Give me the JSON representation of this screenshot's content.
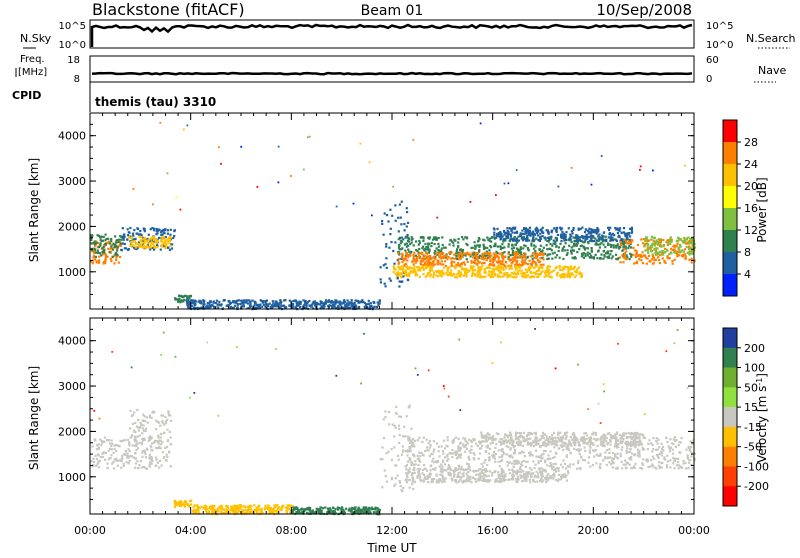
{
  "header": {
    "station": "Blackstone (fitACF)",
    "beam": "Beam 01",
    "date": "10/Sep/2008"
  },
  "top_panels": {
    "nsky_label": "N.Sky",
    "nsky_ticks": [
      "10^5",
      "10^0"
    ],
    "nsearch_label": "N.Search",
    "nsearch_ticks": [
      "10^5",
      "10^0"
    ],
    "freq_label_1": "Freq.",
    "freq_label_2": "[MHz]",
    "freq_ticks": [
      "18",
      "8"
    ],
    "nave_label": "Nave",
    "nave_ticks": [
      "60",
      "0"
    ],
    "cpid_label": "CPID",
    "cpid_text": "themis (tau) 3310"
  },
  "chart_data": [
    {
      "type": "heatmap",
      "name": "power",
      "ylabel": "Slant Range [km]",
      "xlabel": "",
      "ylim": [
        180,
        4500
      ],
      "xlim_hours": [
        0,
        24
      ],
      "yticks": [
        "4000",
        "3000",
        "2000",
        "1000"
      ],
      "colorbar": {
        "label": "Power [dB]",
        "ticks": [
          "28",
          "24",
          "20",
          "16",
          "12",
          "8",
          "4"
        ],
        "colors": [
          "#ff0000",
          "#ff7f00",
          "#ffc000",
          "#ffff00",
          "#80c040",
          "#308050",
          "#2060a0",
          "#0020ff"
        ]
      },
      "bands": [
        {
          "t0": 0.0,
          "t1": 1.2,
          "r0": 1200,
          "r1": 1700,
          "c": "#ff7f00"
        },
        {
          "t0": 0.0,
          "t1": 1.2,
          "r0": 1350,
          "r1": 1850,
          "c": "#308050"
        },
        {
          "t0": 1.2,
          "t1": 3.4,
          "r0": 1500,
          "r1": 2000,
          "c": "#2060a0"
        },
        {
          "t0": 1.5,
          "t1": 3.2,
          "r0": 1550,
          "r1": 1800,
          "c": "#ffc000"
        },
        {
          "t0": 3.3,
          "t1": 4.0,
          "r0": 350,
          "r1": 500,
          "c": "#308050"
        },
        {
          "t0": 3.8,
          "t1": 11.5,
          "r0": 200,
          "r1": 400,
          "c": "#2060a0"
        },
        {
          "t0": 11.5,
          "t1": 12.6,
          "r0": 700,
          "r1": 2600,
          "c": "#2060a0"
        },
        {
          "t0": 12.2,
          "t1": 21.5,
          "r0": 1300,
          "r1": 1800,
          "c": "#308050"
        },
        {
          "t0": 12.2,
          "t1": 18.0,
          "r0": 1150,
          "r1": 1450,
          "c": "#ff7f00"
        },
        {
          "t0": 12.0,
          "t1": 19.5,
          "r0": 900,
          "r1": 1150,
          "c": "#ffc000"
        },
        {
          "t0": 16.0,
          "t1": 21.5,
          "r0": 1700,
          "r1": 2000,
          "c": "#2060a0"
        },
        {
          "t0": 21.0,
          "t1": 24.0,
          "r0": 1200,
          "r1": 1750,
          "c": "#ff7f00"
        },
        {
          "t0": 22.0,
          "t1": 24.0,
          "r0": 1400,
          "r1": 1800,
          "c": "#80c040"
        }
      ]
    },
    {
      "type": "heatmap",
      "name": "velocity",
      "ylabel": "Slant Range [km]",
      "xlabel": "Time UT",
      "ylim": [
        180,
        4500
      ],
      "xlim_hours": [
        0,
        24
      ],
      "yticks": [
        "4000",
        "3000",
        "2000",
        "1000"
      ],
      "xticks": [
        "00:00",
        "04:00",
        "08:00",
        "12:00",
        "16:00",
        "20:00",
        "00:00"
      ],
      "colorbar": {
        "label": "Velocity [m s^-1]",
        "ticks": [
          "200",
          "100",
          "50",
          "15",
          "-15",
          "-50",
          "-100",
          "-200"
        ],
        "colors": [
          "#2040a0",
          "#308050",
          "#70b030",
          "#90e040",
          "#c8c8c0",
          "#ffc000",
          "#ff8000",
          "#ff4000",
          "#ff0000"
        ]
      },
      "bands": [
        {
          "t0": 0.0,
          "t1": 3.2,
          "r0": 1200,
          "r1": 1900,
          "c": "#c8c8c0"
        },
        {
          "t0": 1.5,
          "t1": 3.2,
          "r0": 1700,
          "r1": 2500,
          "c": "#c8c8c0"
        },
        {
          "t0": 3.3,
          "t1": 4.0,
          "r0": 350,
          "r1": 500,
          "c": "#ffc000"
        },
        {
          "t0": 4.0,
          "t1": 8.0,
          "r0": 200,
          "r1": 400,
          "c": "#ffc000"
        },
        {
          "t0": 8.0,
          "t1": 11.5,
          "r0": 200,
          "r1": 350,
          "c": "#308050"
        },
        {
          "t0": 11.5,
          "t1": 12.8,
          "r0": 700,
          "r1": 2600,
          "c": "#c8c8c0"
        },
        {
          "t0": 12.5,
          "t1": 24.0,
          "r0": 1200,
          "r1": 1900,
          "c": "#c8c8c0"
        },
        {
          "t0": 12.5,
          "t1": 19.0,
          "r0": 900,
          "r1": 1200,
          "c": "#c8c8c0"
        },
        {
          "t0": 15.5,
          "t1": 22.0,
          "r0": 1700,
          "r1": 2000,
          "c": "#c8c8c0"
        }
      ]
    }
  ]
}
